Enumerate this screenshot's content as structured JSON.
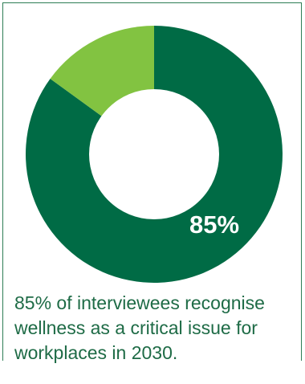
{
  "chart_data": {
    "type": "pie",
    "subtype": "donut",
    "slices": [
      {
        "label": "85%",
        "value": 85,
        "color": "#006b45"
      },
      {
        "label": "",
        "value": 15,
        "color": "#82c341"
      }
    ],
    "data_label": "85%",
    "caption": "85% of interviewees recognise wellness as a critical issue for workplaces in 2030."
  },
  "colors": {
    "primary": "#006b45",
    "secondary": "#82c341",
    "frame": "#2e7d55",
    "caption_text": "#1e6b46",
    "label_text": "#ffffff"
  }
}
